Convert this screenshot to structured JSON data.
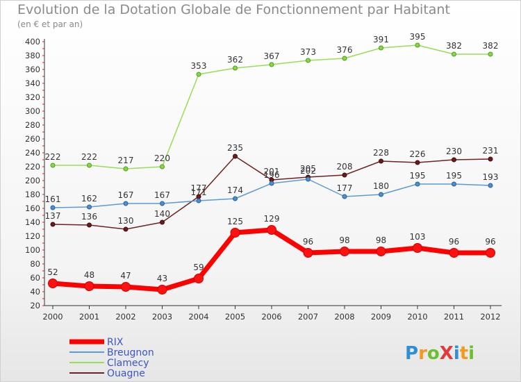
{
  "title": "Evolution de la Dotation Globale de Fonctionnement par Habitant",
  "subtitle": "(en € et par an)",
  "brand": "ProXiti",
  "colors": {
    "RIX": "#ff0000",
    "Breugnon": "#5a9bd5",
    "Clamecy": "#99dd55",
    "Ouagne": "#6e2222"
  },
  "chart_data": {
    "type": "line",
    "title": "Evolution de la Dotation Globale de Fonctionnement par Habitant",
    "ylabel": "(en € et par an)",
    "xlabel": "",
    "x": [
      "2000",
      "2001",
      "2002",
      "2003",
      "2004",
      "2005",
      "2006",
      "2007",
      "2008",
      "2009",
      "2010",
      "2011",
      "2012"
    ],
    "ylim": [
      20,
      400
    ],
    "yticks": [
      20,
      40,
      60,
      80,
      100,
      120,
      140,
      160,
      180,
      200,
      220,
      240,
      260,
      280,
      300,
      320,
      340,
      360,
      380,
      400
    ],
    "grid": false,
    "legend": "bottom-left",
    "series": [
      {
        "name": "RIX",
        "values": [
          52,
          48,
          47,
          43,
          59,
          125,
          129,
          96,
          98,
          98,
          103,
          96,
          96
        ]
      },
      {
        "name": "Breugnon",
        "values": [
          161,
          162,
          167,
          167,
          171,
          174,
          196,
          202,
          177,
          180,
          195,
          195,
          193
        ]
      },
      {
        "name": "Clamecy",
        "values": [
          222,
          222,
          217,
          220,
          353,
          362,
          367,
          373,
          376,
          391,
          395,
          382,
          382
        ]
      },
      {
        "name": "Ouagne",
        "values": [
          137,
          136,
          130,
          140,
          177,
          235,
          201,
          205,
          208,
          228,
          226,
          230,
          231
        ]
      }
    ]
  }
}
